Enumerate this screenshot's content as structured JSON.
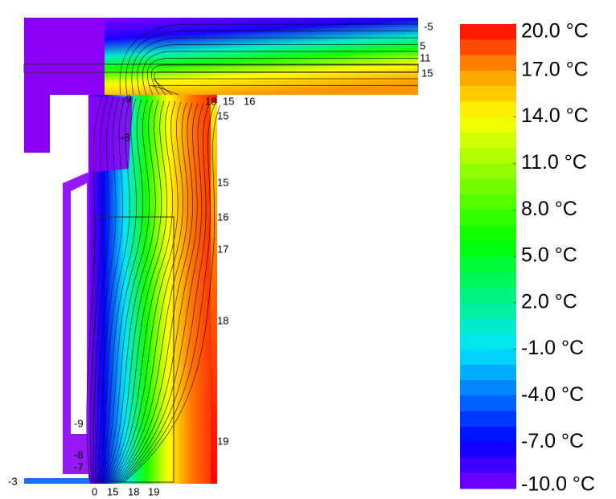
{
  "chart_data": {
    "type": "contour",
    "colorbar": {
      "lim": [
        -10,
        20
      ],
      "ticks": [
        {
          "value": 20,
          "label": "20.0 °C"
        },
        {
          "value": 17,
          "label": "17.0 °C"
        },
        {
          "value": 14,
          "label": "14.0 °C"
        },
        {
          "value": 11,
          "label": "11.0 °C"
        },
        {
          "value": 8,
          "label": "8.0 °C"
        },
        {
          "value": 5,
          "label": "5.0 °C"
        },
        {
          "value": 2,
          "label": "2.0 °C"
        },
        {
          "value": -1,
          "label": "-1.0 °C"
        },
        {
          "value": -4,
          "label": "-4.0 °C"
        },
        {
          "value": -7,
          "label": "-7.0 °C"
        },
        {
          "value": -10,
          "label": "-10.0 °C"
        }
      ]
    },
    "contour_labels": [
      -5,
      5,
      11,
      15,
      -9,
      18,
      15,
      16,
      15,
      -8,
      15,
      16,
      17,
      18,
      19,
      -9,
      -8,
      -7,
      -3,
      0,
      15,
      18,
      19
    ]
  }
}
